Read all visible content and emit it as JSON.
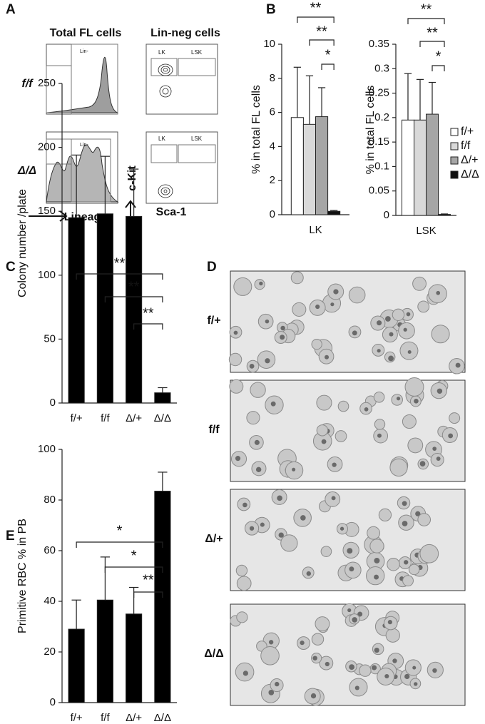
{
  "panel_labels": [
    "A",
    "B",
    "C",
    "D",
    "E"
  ],
  "flow_panel": {
    "headers": [
      "Total FL cells",
      "Lin-neg cells"
    ],
    "rows": [
      "f/f",
      "Δ/Δ"
    ],
    "gates": [
      "Lin-",
      "LK",
      "LSK"
    ],
    "x_labels": [
      "Lineage",
      "Sca-1"
    ],
    "y_label": "c-Kit"
  },
  "micrographs": {
    "labels": [
      "f/+",
      "f/f",
      "Δ/+",
      "Δ/Δ"
    ]
  },
  "chart_data": [
    {
      "type": "bar",
      "y_label": "% in total FL cells",
      "categories": [
        "LK"
      ],
      "ylim": [
        0,
        10
      ],
      "yticks": [
        0,
        2,
        4,
        6,
        8,
        10
      ],
      "series": [
        {
          "name": "f/+",
          "color": "#ffffff",
          "values": [
            5.7
          ],
          "errors": [
            2.95
          ]
        },
        {
          "name": "f/f",
          "color": "#d9d9d9",
          "values": [
            5.3
          ],
          "errors": [
            2.85
          ]
        },
        {
          "name": "Δ/+",
          "color": "#a6a6a6",
          "values": [
            5.75
          ],
          "errors": [
            1.7
          ]
        },
        {
          "name": "Δ/Δ",
          "color": "#111111",
          "values": [
            0.2
          ],
          "errors": [
            0.05
          ]
        }
      ],
      "significance": [
        "**",
        "**",
        "*"
      ]
    },
    {
      "type": "bar",
      "y_label": "% in total FL cells",
      "categories": [
        "LSK"
      ],
      "ylim": [
        0,
        0.35
      ],
      "yticks": [
        0,
        0.05,
        0.1,
        0.15,
        0.2,
        0.25,
        0.3,
        0.35
      ],
      "series": [
        {
          "name": "f/+",
          "color": "#ffffff",
          "values": [
            0.195
          ],
          "errors": [
            0.095
          ]
        },
        {
          "name": "f/f",
          "color": "#d9d9d9",
          "values": [
            0.195
          ],
          "errors": [
            0.083
          ]
        },
        {
          "name": "Δ/+",
          "color": "#a6a6a6",
          "values": [
            0.207
          ],
          "errors": [
            0.065
          ]
        },
        {
          "name": "Δ/Δ",
          "color": "#111111",
          "values": [
            0.002
          ],
          "errors": [
            0.001
          ]
        }
      ],
      "significance": [
        "**",
        "**",
        "*"
      ],
      "legend": "right"
    },
    {
      "type": "bar",
      "y_label": "Colony number /plate",
      "categories": [
        "f/+",
        "f/f",
        "Δ/+",
        "Δ/Δ"
      ],
      "ylim": [
        0,
        250
      ],
      "yticks": [
        0,
        50,
        100,
        150,
        200,
        250
      ],
      "series": [
        {
          "color": "#000000",
          "values": [
            145,
            148,
            146,
            8
          ],
          "errors": [
            49,
            45,
            37,
            4
          ]
        }
      ],
      "significance": [
        "**",
        "**",
        "**"
      ]
    },
    {
      "type": "bar",
      "y_label": "Primitive RBC % in PB",
      "categories": [
        "f/+",
        "f/f",
        "Δ/+",
        "Δ/Δ"
      ],
      "ylim": [
        0,
        100
      ],
      "yticks": [
        0,
        20,
        40,
        60,
        80,
        100
      ],
      "series": [
        {
          "color": "#000000",
          "values": [
            29,
            40.5,
            35,
            83.5
          ],
          "errors": [
            11.5,
            17,
            10.5,
            7.5
          ]
        }
      ],
      "significance": [
        "*",
        "*",
        "**"
      ]
    }
  ]
}
